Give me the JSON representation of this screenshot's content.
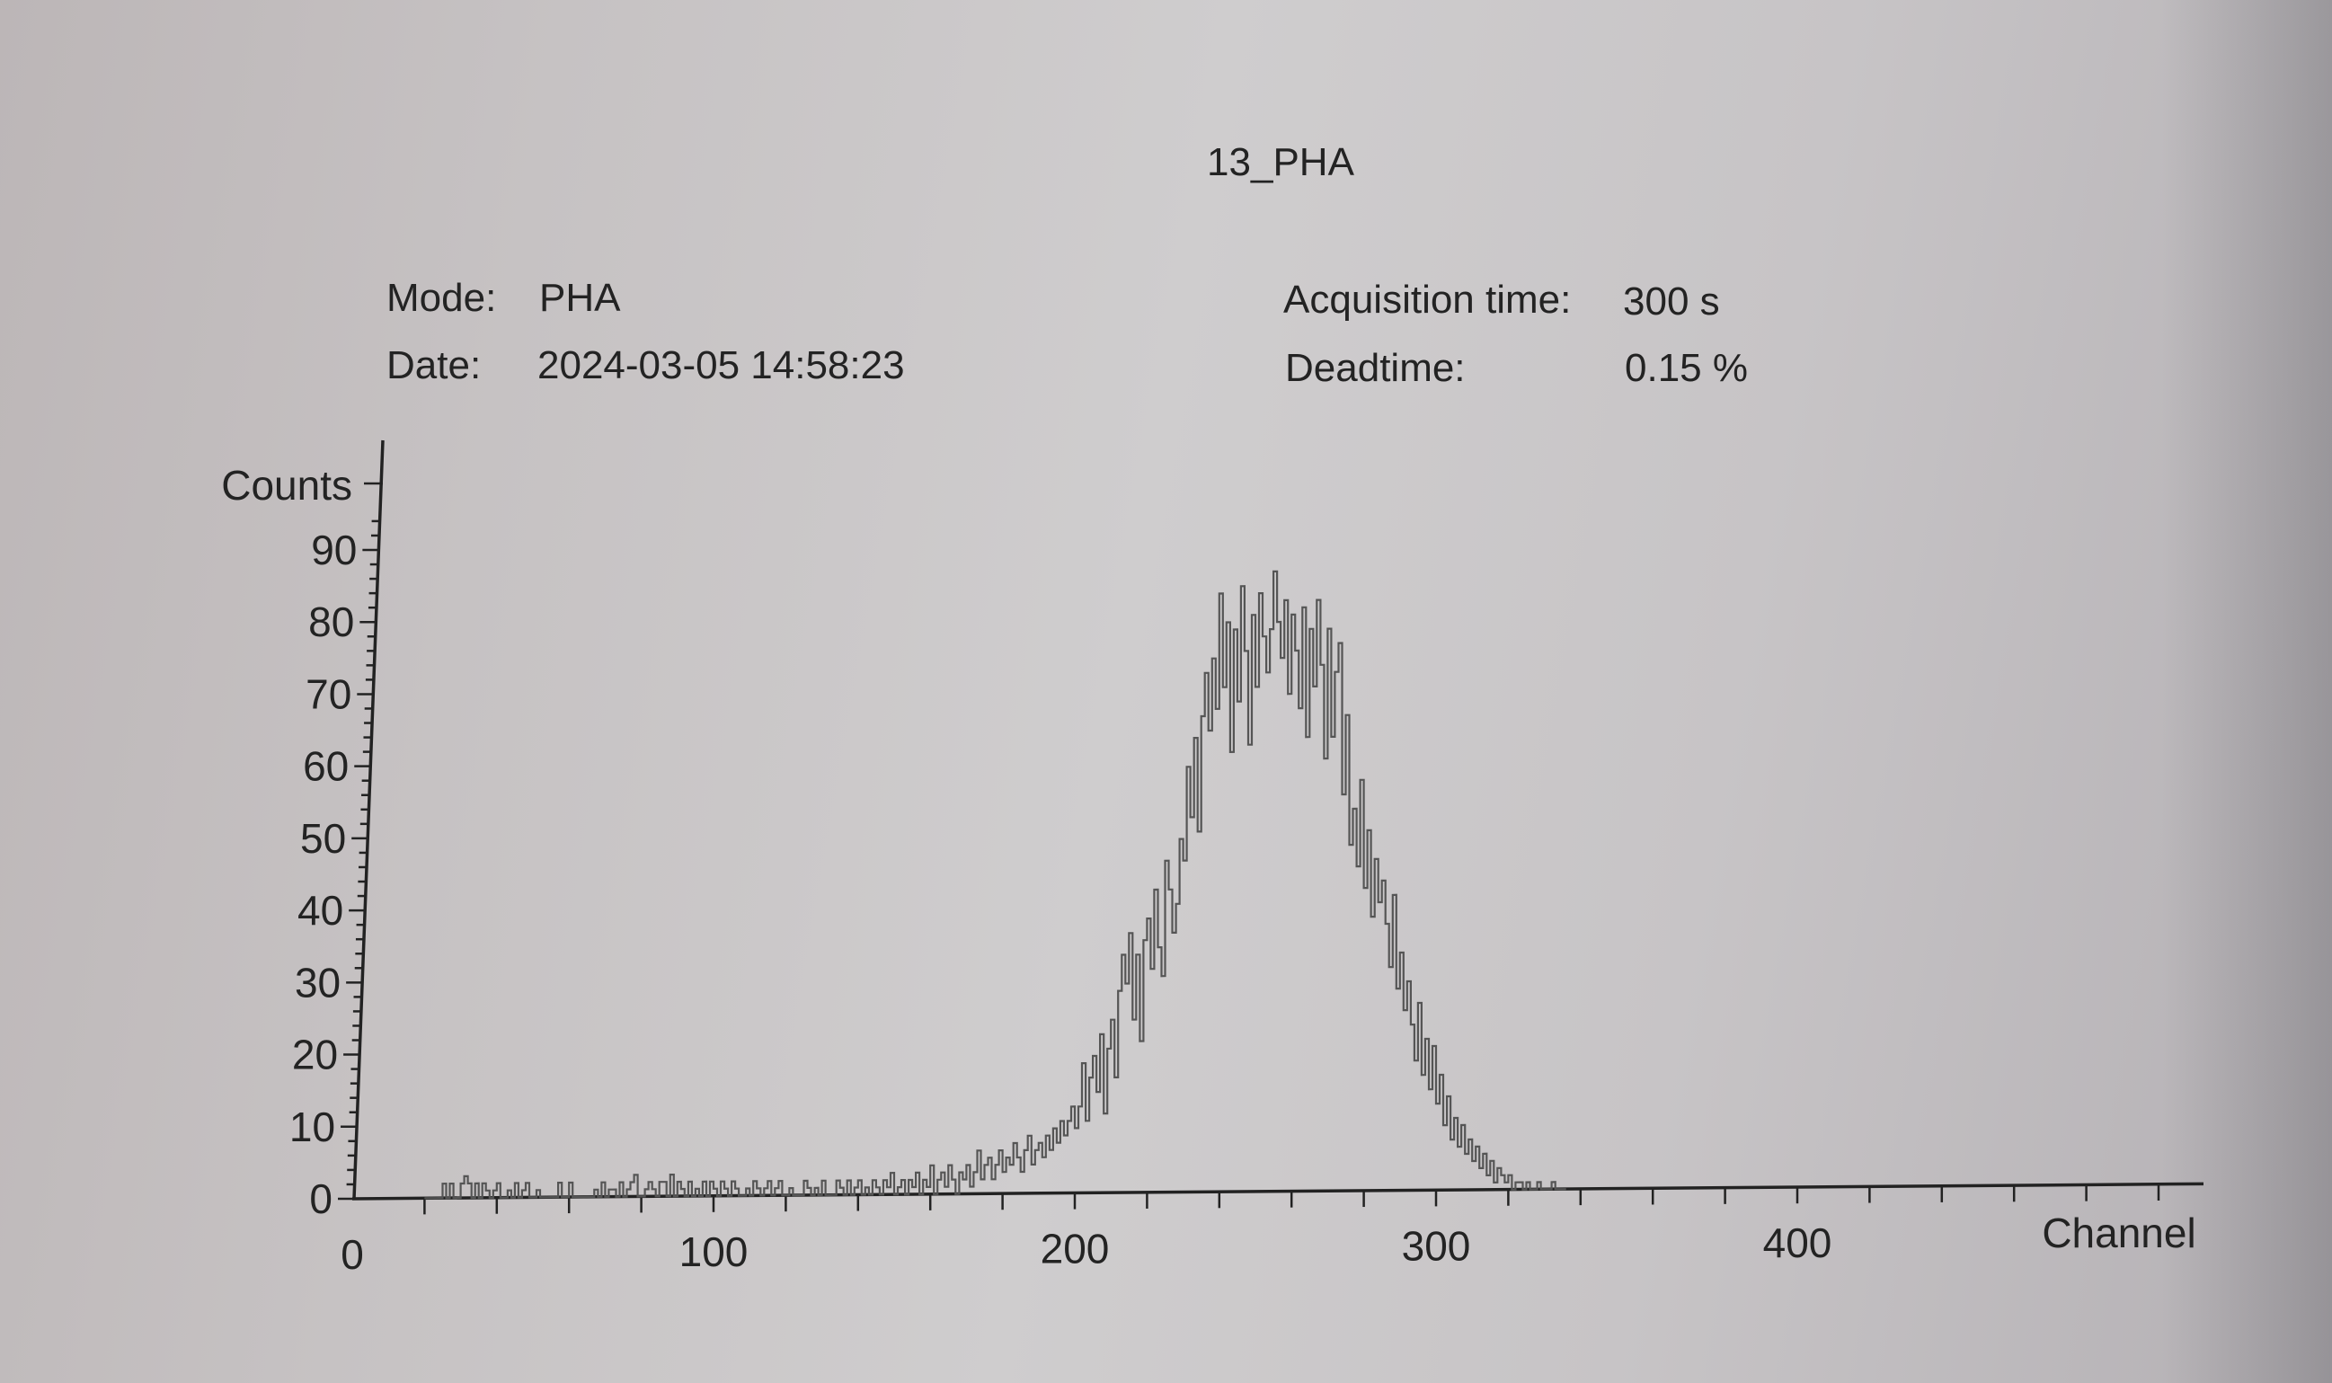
{
  "title": "13_PHA",
  "info": {
    "mode_label": "Mode:",
    "mode_value": "PHA",
    "date_label": "Date:",
    "date_value": "2024-03-05 14:58:23",
    "acq_label": "Acquisition time:",
    "acq_value": "300 s",
    "dead_label": "Deadtime:",
    "dead_value": "0.15 %"
  },
  "chart_data": {
    "type": "line",
    "style": "histogram-step",
    "title": "13_PHA",
    "xlabel": "Channel",
    "ylabel": "Counts",
    "xlim": [
      0,
      500
    ],
    "ylim": [
      0,
      100
    ],
    "x_ticks": [
      0,
      100,
      200,
      300,
      400
    ],
    "y_ticks": [
      0,
      10,
      20,
      30,
      40,
      50,
      60,
      70,
      80,
      90
    ],
    "grid": false,
    "line_color": "#555555",
    "series": [
      {
        "x_start": 20,
        "values": [
          0,
          0,
          0,
          0,
          0,
          2,
          0,
          2,
          0,
          0,
          2,
          3,
          2,
          0,
          2,
          0,
          2,
          1,
          0,
          1,
          2,
          0,
          0,
          1,
          0,
          2,
          0,
          1,
          2,
          0,
          0,
          1,
          0,
          0,
          0,
          0,
          0,
          2,
          0,
          0,
          2,
          0,
          0,
          0,
          0,
          0,
          0,
          1,
          0,
          2,
          0,
          1,
          1,
          0,
          2,
          0,
          1,
          2,
          3,
          0,
          0,
          1,
          2,
          1,
          0,
          2,
          2,
          0,
          3,
          0,
          2,
          1,
          0,
          2,
          0,
          1,
          0,
          2,
          0,
          2,
          1,
          0,
          2,
          1,
          0,
          2,
          1,
          0,
          0,
          1,
          0,
          2,
          1,
          0,
          1,
          2,
          0,
          1,
          2,
          0,
          0,
          1,
          0,
          0,
          0,
          2,
          1,
          0,
          1,
          0,
          2,
          0,
          0,
          0,
          2,
          1,
          0,
          2,
          0,
          1,
          2,
          0,
          1,
          0,
          2,
          1,
          0,
          2,
          1,
          3,
          0,
          1,
          2,
          0,
          2,
          1,
          3,
          0,
          2,
          1,
          4,
          0,
          2,
          3,
          1,
          4,
          2,
          0,
          3,
          2,
          4,
          1,
          3,
          6,
          2,
          4,
          5,
          2,
          4,
          6,
          3,
          5,
          4,
          7,
          5,
          3,
          6,
          8,
          4,
          6,
          7,
          5,
          8,
          6,
          9,
          7,
          10,
          8,
          10,
          12,
          9,
          12,
          18,
          10,
          16,
          19,
          14,
          22,
          11,
          20,
          24,
          16,
          28,
          33,
          29,
          36,
          24,
          33,
          21,
          35,
          38,
          31,
          42,
          34,
          30,
          46,
          42,
          36,
          40,
          49,
          46,
          59,
          52,
          63,
          50,
          66,
          72,
          64,
          74,
          67,
          83,
          70,
          79,
          61,
          78,
          68,
          84,
          75,
          62,
          80,
          70,
          83,
          77,
          72,
          78,
          86,
          79,
          74,
          82,
          69,
          80,
          75,
          67,
          81,
          63,
          78,
          70,
          82,
          73,
          60,
          78,
          63,
          72,
          76,
          55,
          66,
          48,
          53,
          45,
          57,
          42,
          50,
          38,
          46,
          40,
          43,
          37,
          31,
          41,
          28,
          33,
          25,
          29,
          23,
          18,
          26,
          16,
          21,
          14,
          20,
          12,
          16,
          9,
          13,
          7,
          10,
          6,
          9,
          5,
          7,
          4,
          6,
          3,
          5,
          2,
          4,
          1,
          3,
          2,
          1,
          2,
          0,
          1,
          1,
          0,
          1,
          0,
          0,
          1,
          0,
          0,
          0,
          1,
          0,
          0,
          0
        ]
      }
    ]
  }
}
